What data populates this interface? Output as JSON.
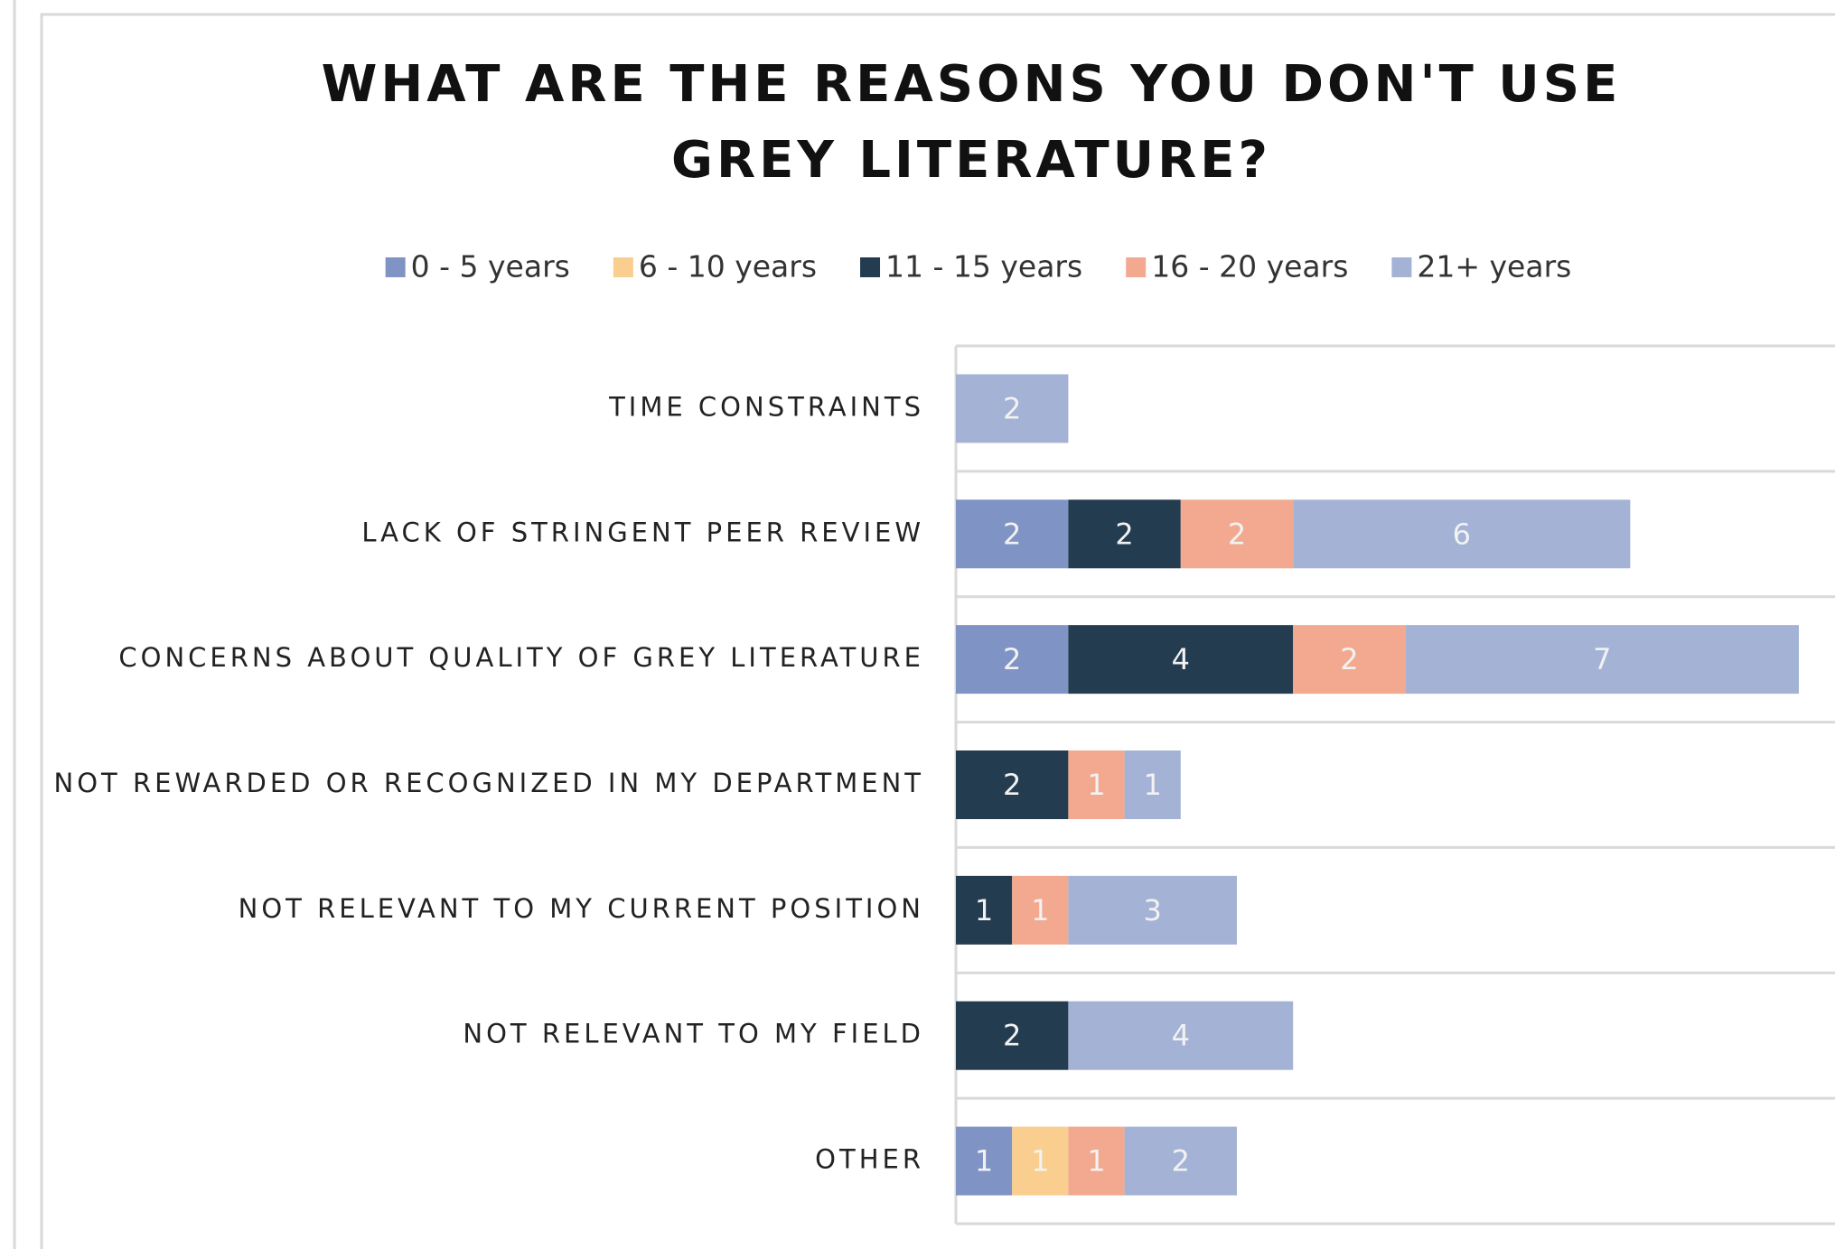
{
  "chart_data": {
    "type": "stacked_barh",
    "title": "WHAT ARE THE REASONS YOU DON'T USE GREY LITERATURE?",
    "categories": [
      "TIME CONSTRAINTS",
      "LACK OF STRINGENT PEER REVIEW",
      "CONCERNS ABOUT QUALITY OF GREY LITERATURE",
      "NOT REWARDED OR RECOGNIZED IN MY DEPARTMENT",
      "NOT RELEVANT TO MY CURRENT POSITION",
      "NOT RELEVANT TO MY FIELD",
      "OTHER"
    ],
    "series": [
      {
        "name": "0 - 5 years",
        "color": "#7f93c4",
        "values": [
          null,
          2,
          2,
          null,
          null,
          null,
          1
        ]
      },
      {
        "name": "6 - 10 years",
        "color": "#f9ce8f",
        "values": [
          null,
          null,
          null,
          null,
          null,
          null,
          1
        ]
      },
      {
        "name": "11 - 15 years",
        "color": "#243c50",
        "values": [
          null,
          2,
          4,
          2,
          1,
          2,
          null
        ]
      },
      {
        "name": "16 - 20 years",
        "color": "#f2a98f",
        "values": [
          null,
          2,
          2,
          1,
          1,
          null,
          1
        ]
      },
      {
        "name": "21+ years",
        "color": "#a4b2d5",
        "values": [
          2,
          6,
          7,
          1,
          3,
          4,
          2
        ]
      }
    ],
    "xlim": [
      0,
      16
    ],
    "legend": "top"
  }
}
